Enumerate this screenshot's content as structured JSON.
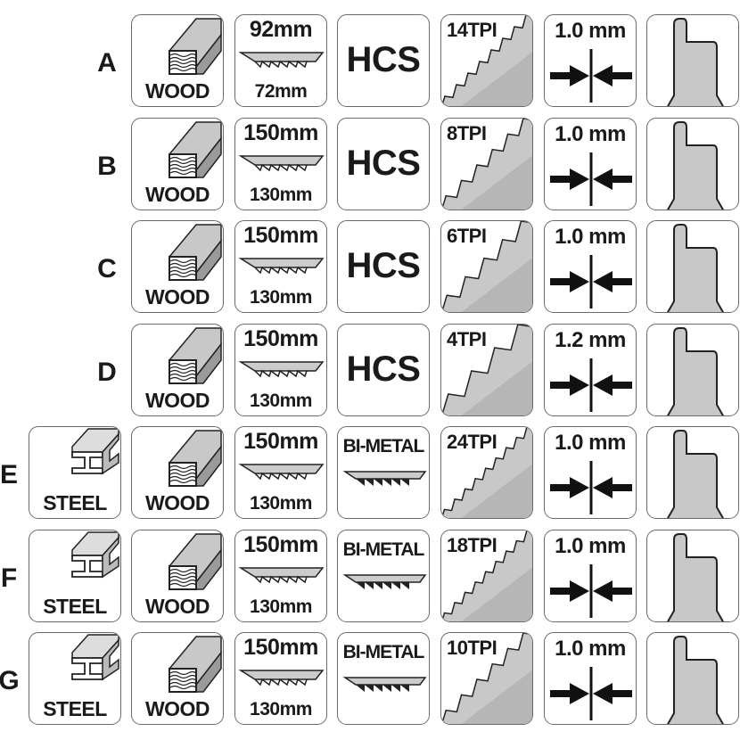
{
  "colors": {
    "border": "#6a6a6a",
    "fill_gray": "#c8c8c8",
    "dark_gray": "#9a9a9a",
    "text": "#1a1a1a"
  },
  "rows": [
    {
      "label": "A",
      "steel": null,
      "wood": "WOOD",
      "length_top": "92mm",
      "length_bottom": "72mm",
      "material": "HCS",
      "tpi": "14TPI",
      "thickness": "1.0 mm"
    },
    {
      "label": "B",
      "steel": null,
      "wood": "WOOD",
      "length_top": "150mm",
      "length_bottom": "130mm",
      "material": "HCS",
      "tpi": "8TPI",
      "thickness": "1.0 mm"
    },
    {
      "label": "C",
      "steel": null,
      "wood": "WOOD",
      "length_top": "150mm",
      "length_bottom": "130mm",
      "material": "HCS",
      "tpi": "6TPI",
      "thickness": "1.0 mm"
    },
    {
      "label": "D",
      "steel": null,
      "wood": "WOOD",
      "length_top": "150mm",
      "length_bottom": "130mm",
      "material": "HCS",
      "tpi": "4TPI",
      "thickness": "1.2 mm"
    },
    {
      "label": "E",
      "steel": "STEEL",
      "wood": "WOOD",
      "length_top": "150mm",
      "length_bottom": "130mm",
      "material": "BI-METAL",
      "tpi": "24TPI",
      "thickness": "1.0 mm"
    },
    {
      "label": "F",
      "steel": "STEEL",
      "wood": "WOOD",
      "length_top": "150mm",
      "length_bottom": "130mm",
      "material": "BI-METAL",
      "tpi": "18TPI",
      "thickness": "1.0 mm"
    },
    {
      "label": "G",
      "steel": "STEEL",
      "wood": "WOOD",
      "length_top": "150mm",
      "length_bottom": "130mm",
      "material": "BI-METAL",
      "tpi": "10TPI",
      "thickness": "1.0 mm"
    }
  ],
  "icons": {
    "steel": "i-beam-icon",
    "wood": "wood-block-icon",
    "blade": "blade-length-icon",
    "teeth": "saw-teeth-icon",
    "thickness": "thickness-arrows-icon",
    "shank": "t-shank-icon"
  }
}
